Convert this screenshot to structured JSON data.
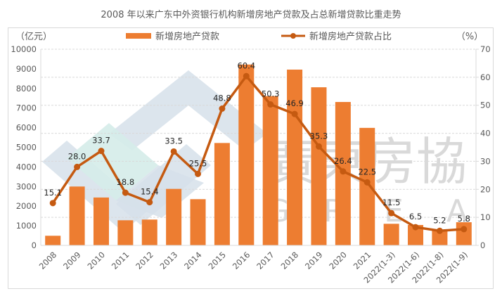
{
  "chart_data": {
    "type": "bar+line",
    "title": "2008 年以来广东中外资银行机构新增房地产贷款及占总新增贷款比重走势",
    "categories": [
      "2008",
      "2009",
      "2010",
      "2011",
      "2012",
      "2013",
      "2014",
      "2015",
      "2016",
      "2017",
      "2018",
      "2019",
      "2020",
      "2021",
      "2022(1-3)",
      "2022(1-6)",
      "2022(1-8)",
      "2022(1-9)"
    ],
    "series": [
      {
        "name": "新增房地产贷款",
        "type": "bar",
        "axis": "left",
        "color": "#ed7d31",
        "values": [
          490,
          3000,
          2440,
          1280,
          1315,
          2880,
          2355,
          5220,
          9220,
          7610,
          8960,
          8060,
          7310,
          5990,
          1100,
          1040,
          800,
          1180
        ]
      },
      {
        "name": "新增房地产贷款占比",
        "type": "line",
        "axis": "right",
        "color": "#c55a11",
        "values": [
          15.1,
          28.0,
          33.7,
          18.8,
          15.4,
          33.5,
          25.5,
          48.8,
          60.4,
          50.3,
          46.9,
          35.3,
          26.4,
          22.5,
          11.5,
          6.5,
          5.2,
          5.8
        ],
        "labels": [
          "15.1",
          "28.0",
          "33.7",
          "18.8",
          "15.4",
          "33.5",
          "25.5",
          "48.8",
          "60.4",
          "50.3",
          "46.9",
          "35.3",
          "26.4",
          "22.5",
          "11.5",
          "6.5",
          "5.2",
          "5.8"
        ]
      }
    ],
    "ylabel_left": "（亿元）",
    "ylabel_right": "（%）",
    "ylim_left": [
      0,
      10000
    ],
    "ylim_right": [
      0,
      70
    ],
    "yticks_left": [
      "0",
      "1000",
      "2000",
      "3000",
      "4000",
      "5000",
      "6000",
      "7000",
      "8000",
      "9000",
      "10000"
    ],
    "yticks_right": [
      "0",
      "10",
      "20",
      "30",
      "40",
      "50",
      "60",
      "70"
    ],
    "grid": true,
    "legend": "top-center"
  },
  "watermark": {
    "text": "廣東房協",
    "subtext": [
      "G",
      "R",
      "E",
      "A"
    ]
  }
}
